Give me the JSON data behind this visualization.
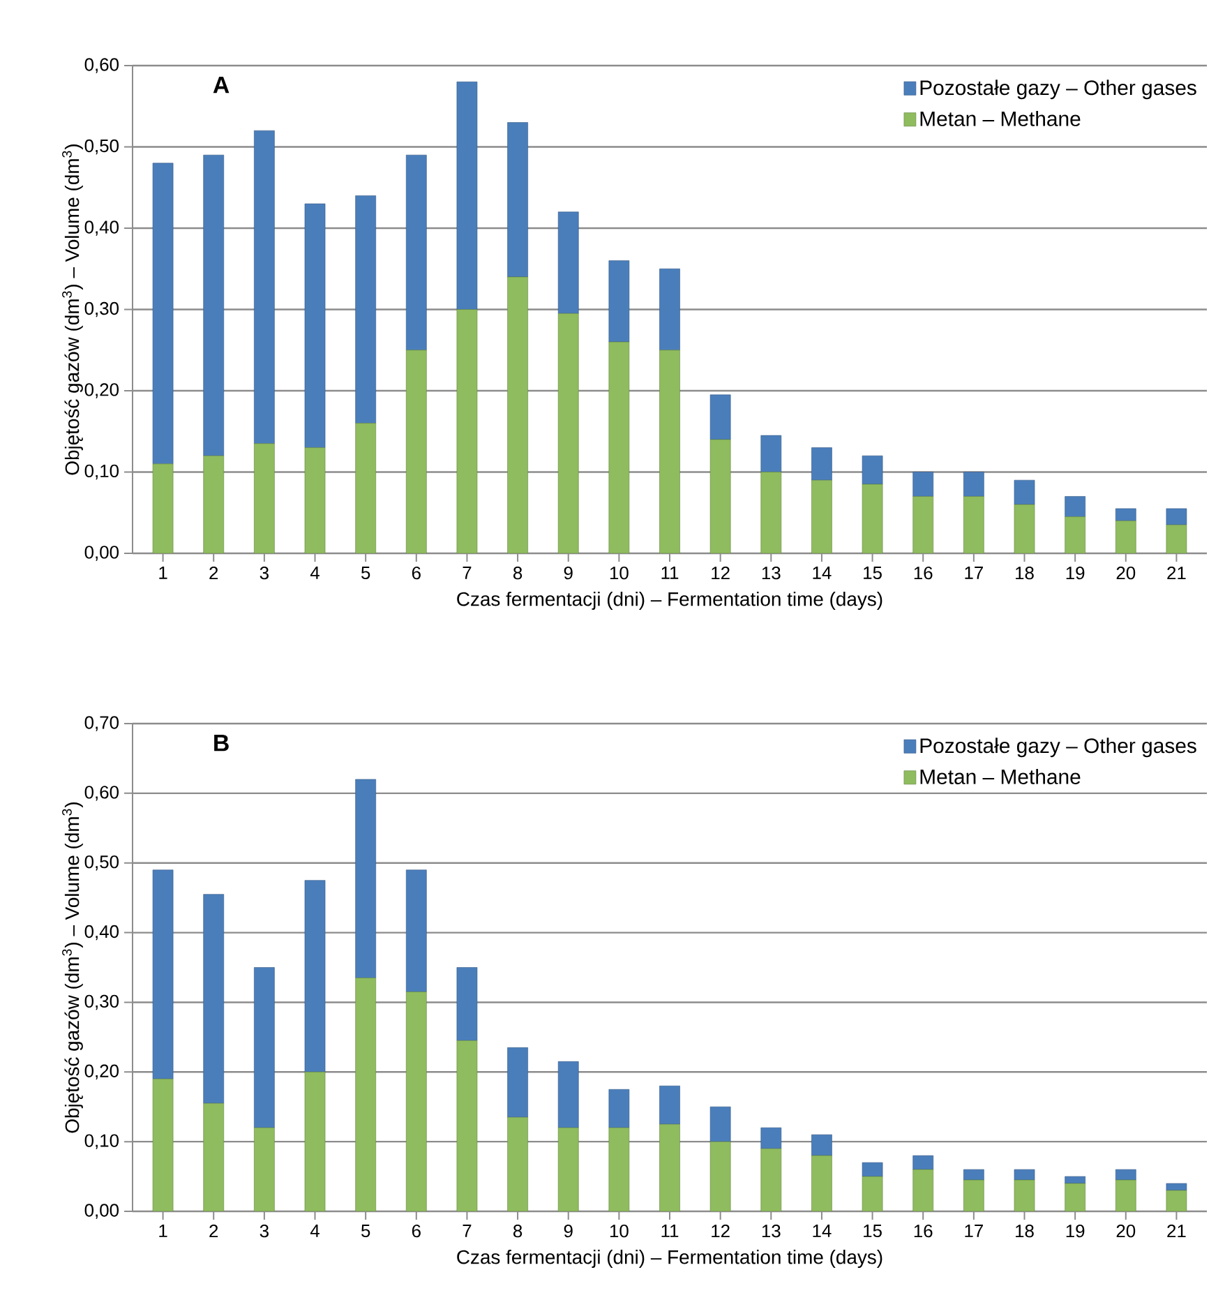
{
  "chart_data": [
    {
      "type": "bar",
      "title": "A",
      "stacked": true,
      "grid": "y",
      "legend": "top right",
      "xlabel": "Czas fermentacji (dni) – Fermentation time (days)",
      "ylabel": "Objętość gazów (dm$^{3}$)  – Volume (dm$^{3}$)",
      "categories": [
        "1",
        "2",
        "3",
        "4",
        "5",
        "6",
        "7",
        "8",
        "9",
        "10",
        "11",
        "12",
        "13",
        "14",
        "15",
        "16",
        "17",
        "18",
        "19",
        "20",
        "21"
      ],
      "ylim": [
        0,
        0.6
      ],
      "yticks": [
        {
          "value": 0,
          "label": "0,00"
        },
        {
          "value": 0.1,
          "label": "0,10"
        },
        {
          "value": 0.2,
          "label": "0,20"
        },
        {
          "value": 0.3,
          "label": "0,30"
        },
        {
          "value": 0.4,
          "label": "0,40"
        },
        {
          "value": 0.5,
          "label": "0,50"
        },
        {
          "value": 0.6,
          "label": "0,60"
        }
      ],
      "series": [
        {
          "name": "Metan – Methane",
          "color": "#8fbc5e",
          "values": [
            0.11,
            0.12,
            0.135,
            0.13,
            0.16,
            0.25,
            0.3,
            0.34,
            0.295,
            0.26,
            0.25,
            0.14,
            0.1,
            0.09,
            0.085,
            0.07,
            0.07,
            0.06,
            0.045,
            0.04,
            0.035
          ]
        },
        {
          "name": "Pozostałe gazy – Other gases",
          "color": "#4a7ebb",
          "values": [
            0.37,
            0.37,
            0.385,
            0.3,
            0.28,
            0.24,
            0.28,
            0.19,
            0.125,
            0.1,
            0.1,
            0.055,
            0.045,
            0.04,
            0.035,
            0.03,
            0.03,
            0.03,
            0.025,
            0.015,
            0.02
          ]
        }
      ]
    },
    {
      "type": "bar",
      "title": "B",
      "stacked": true,
      "grid": "y",
      "legend": "top right",
      "xlabel": "Czas fermentacji (dni) – Fermentation time (days)",
      "ylabel": "Objętość gazów (dm$^{3}$)  – Volume (dm$^{3}$)",
      "categories": [
        "1",
        "2",
        "3",
        "4",
        "5",
        "6",
        "7",
        "8",
        "9",
        "10",
        "11",
        "12",
        "13",
        "14",
        "15",
        "16",
        "17",
        "18",
        "19",
        "20",
        "21"
      ],
      "ylim": [
        0,
        0.7
      ],
      "yticks": [
        {
          "value": 0,
          "label": "0,00"
        },
        {
          "value": 0.1,
          "label": "0,10"
        },
        {
          "value": 0.2,
          "label": "0,20"
        },
        {
          "value": 0.3,
          "label": "0,30"
        },
        {
          "value": 0.4,
          "label": "0,40"
        },
        {
          "value": 0.5,
          "label": "0,50"
        },
        {
          "value": 0.6,
          "label": "0,60"
        },
        {
          "value": 0.7,
          "label": "0,70"
        }
      ],
      "series": [
        {
          "name": "Metan – Methane",
          "color": "#8fbc5e",
          "values": [
            0.19,
            0.155,
            0.12,
            0.2,
            0.335,
            0.315,
            0.245,
            0.135,
            0.12,
            0.12,
            0.125,
            0.1,
            0.09,
            0.08,
            0.05,
            0.06,
            0.045,
            0.045,
            0.04,
            0.045,
            0.03
          ]
        },
        {
          "name": "Pozostałe gazy – Other gases",
          "color": "#4a7ebb",
          "values": [
            0.3,
            0.3,
            0.23,
            0.275,
            0.285,
            0.175,
            0.105,
            0.1,
            0.095,
            0.055,
            0.055,
            0.05,
            0.03,
            0.03,
            0.02,
            0.02,
            0.015,
            0.015,
            0.01,
            0.015,
            0.01
          ]
        }
      ]
    }
  ]
}
